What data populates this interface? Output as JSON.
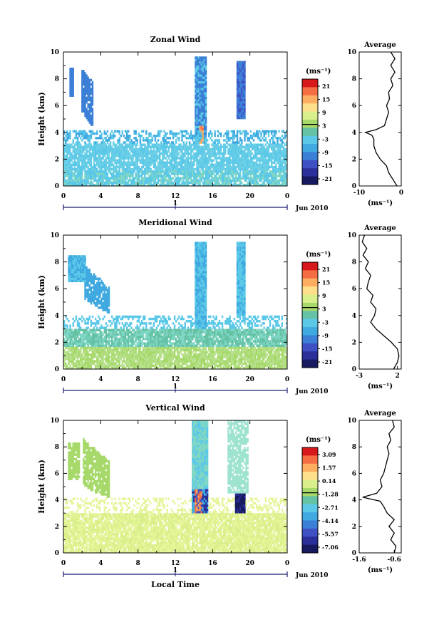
{
  "chart_data": [
    {
      "type": "heatmap",
      "title": "Zonal Wind",
      "ylabel": "Height (km)",
      "ylim": [
        0,
        10
      ],
      "yticks": [
        "0",
        "2",
        "4",
        "6",
        "8",
        "10"
      ],
      "xticks": [
        "0",
        "4",
        "8",
        "12",
        "16",
        "20",
        "0"
      ],
      "xlim": [
        0,
        24
      ],
      "day_axis": {
        "label": "1",
        "suffix": "Jun 2010"
      },
      "colorbar": {
        "unit": "(ms⁻¹)",
        "ticks": [
          "21",
          "15",
          "9",
          "3",
          "-3",
          "-9",
          "-15",
          "-21"
        ]
      },
      "average": {
        "title": "Average",
        "xlabel": "(ms⁻¹)",
        "xticks": [
          "-10",
          "0"
        ],
        "xlim": [
          -10,
          0
        ],
        "profile": [
          [
            -1,
            0
          ],
          [
            -2,
            0.5
          ],
          [
            -3,
            1
          ],
          [
            -3.5,
            1.5
          ],
          [
            -5,
            2
          ],
          [
            -6,
            2.5
          ],
          [
            -6.5,
            3
          ],
          [
            -6.5,
            3.5
          ],
          [
            -7,
            3.8
          ],
          [
            -8.5,
            4
          ],
          [
            -6,
            4.2
          ],
          [
            -4,
            4.5
          ],
          [
            -3.5,
            5
          ],
          [
            -3,
            5.5
          ],
          [
            -3.5,
            6
          ],
          [
            -2.8,
            6.5
          ],
          [
            -3,
            7
          ],
          [
            -2,
            7.5
          ],
          [
            -2.5,
            8
          ],
          [
            -1.5,
            8.5
          ],
          [
            -2.5,
            9
          ],
          [
            -1.5,
            9.5
          ],
          [
            -2.5,
            10
          ]
        ]
      }
    },
    {
      "type": "heatmap",
      "title": "Meridional Wind",
      "ylabel": "Height (km)",
      "ylim": [
        0,
        10
      ],
      "yticks": [
        "0",
        "2",
        "4",
        "6",
        "8",
        "10"
      ],
      "xticks": [
        "0",
        "4",
        "8",
        "12",
        "16",
        "20",
        "0"
      ],
      "xlim": [
        0,
        24
      ],
      "day_axis": {
        "label": "1",
        "suffix": "Jun 2010"
      },
      "colorbar": {
        "unit": "(ms⁻¹)",
        "ticks": [
          "21",
          "15",
          "9",
          "3",
          "-3",
          "-9",
          "-15",
          "-21"
        ]
      },
      "average": {
        "title": "Average",
        "xlabel": "(ms⁻¹)",
        "xticks": [
          "-3",
          "2"
        ],
        "xlim": [
          -3,
          2.5
        ],
        "profile": [
          [
            1.5,
            0
          ],
          [
            2,
            0.5
          ],
          [
            2.2,
            1
          ],
          [
            2,
            1.5
          ],
          [
            1.2,
            2
          ],
          [
            0.2,
            2.5
          ],
          [
            -0.8,
            3
          ],
          [
            -1.5,
            3.5
          ],
          [
            -1,
            4
          ],
          [
            -0.8,
            4.5
          ],
          [
            -1.5,
            5
          ],
          [
            -1.2,
            5.5
          ],
          [
            -2,
            6
          ],
          [
            -1.8,
            6.5
          ],
          [
            -1.5,
            7
          ],
          [
            -2.2,
            7.5
          ],
          [
            -1.8,
            8
          ],
          [
            -2.5,
            8.5
          ],
          [
            -2,
            9
          ],
          [
            -2.6,
            9.5
          ],
          [
            -2.3,
            10
          ]
        ]
      }
    },
    {
      "type": "heatmap",
      "title": "Vertical Wind",
      "ylabel": "Height (km)",
      "xlabel": "Local Time",
      "ylim": [
        0,
        10
      ],
      "yticks": [
        "0",
        "2",
        "4",
        "6",
        "8",
        "10"
      ],
      "xticks": [
        "0",
        "4",
        "8",
        "12",
        "16",
        "20",
        "0"
      ],
      "xlim": [
        0,
        24
      ],
      "day_axis": {
        "label": "1",
        "suffix": "Jun 2010"
      },
      "colorbar": {
        "unit": "(ms⁻¹)",
        "ticks": [
          "3.09",
          "1.57",
          "0.14",
          "-1.28",
          "-2.71",
          "-4.14",
          "-5.57",
          "-7.06"
        ]
      },
      "average": {
        "title": "Average",
        "xlabel": "(ms⁻¹)",
        "xticks": [
          "-1.6",
          "-0.6"
        ],
        "xlim": [
          -1.6,
          -0.4
        ],
        "profile": [
          [
            -0.6,
            0
          ],
          [
            -0.55,
            0.5
          ],
          [
            -0.7,
            1
          ],
          [
            -0.6,
            1.5
          ],
          [
            -0.75,
            2
          ],
          [
            -0.6,
            2.5
          ],
          [
            -0.8,
            3
          ],
          [
            -0.9,
            3.5
          ],
          [
            -1.0,
            3.9
          ],
          [
            -1.5,
            4.2
          ],
          [
            -1.1,
            4.5
          ],
          [
            -0.95,
            5
          ],
          [
            -1.0,
            5.5
          ],
          [
            -0.9,
            6
          ],
          [
            -0.85,
            6.5
          ],
          [
            -0.8,
            7
          ],
          [
            -0.75,
            7.5
          ],
          [
            -0.8,
            8
          ],
          [
            -0.7,
            8.5
          ],
          [
            -0.75,
            9
          ],
          [
            -0.6,
            9.5
          ],
          [
            -0.65,
            10
          ]
        ]
      }
    }
  ]
}
